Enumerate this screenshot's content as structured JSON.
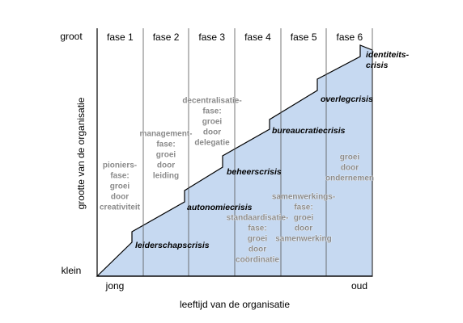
{
  "axis": {
    "y_top": "groot",
    "y_bottom": "klein",
    "y_label": "grootte van de organisatie",
    "x_left": "jong",
    "x_right": "oud",
    "x_label": "leeftijd van de organisatie"
  },
  "phases": [
    {
      "label": "fase 1",
      "text": [
        "pioniers-",
        "fase:",
        "groei",
        "door",
        "creativiteit"
      ],
      "crisis": [
        "leiderschapscrisis"
      ]
    },
    {
      "label": "fase 2",
      "text": [
        "management-",
        "fase:",
        "groei",
        "door",
        "leiding"
      ],
      "crisis": [
        "autonomiecrisis"
      ]
    },
    {
      "label": "fase 3",
      "text": [
        "decentralisatie-",
        "fase:",
        "groei",
        "door",
        "delegatie"
      ],
      "crisis": [
        "beheerscrisis"
      ]
    },
    {
      "label": "fase 4",
      "text": [
        "standaardisatie-",
        "fase:",
        "groei",
        "door",
        "coördinatie"
      ],
      "crisis": [
        "bureaucratiecrisis"
      ]
    },
    {
      "label": "fase 5",
      "text": [
        "samenwerkings-",
        "fase:",
        "groei",
        "door",
        "samenwerking"
      ],
      "crisis": [
        "overlegcrisis"
      ]
    },
    {
      "label": "fase 6",
      "text": [
        "groei",
        "door",
        "ondernemen"
      ],
      "crisis": [
        "identiteits-",
        "crisis"
      ]
    }
  ]
}
